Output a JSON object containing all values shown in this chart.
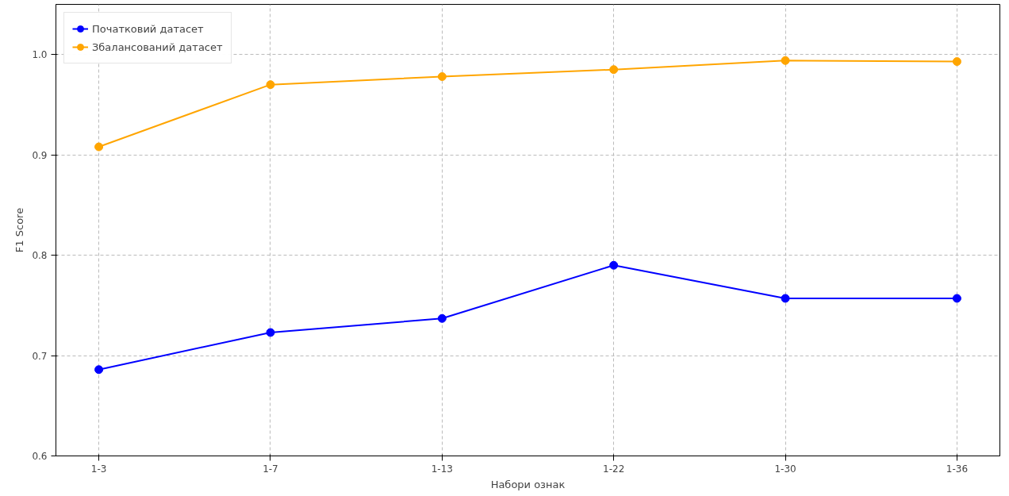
{
  "chart_data": {
    "type": "line",
    "xlabel": "Набори ознак",
    "ylabel": "F1 Score",
    "categories": [
      "1-3",
      "1-7",
      "1-13",
      "1-22",
      "1-30",
      "1-36"
    ],
    "series": [
      {
        "name": "Початковий датасет",
        "color": "#0000ff",
        "values": [
          0.686,
          0.723,
          0.737,
          0.79,
          0.757,
          0.757
        ]
      },
      {
        "name": "Збалансований датасет",
        "color": "#ffa500",
        "values": [
          0.908,
          0.97,
          0.978,
          0.985,
          0.994,
          0.993
        ]
      }
    ],
    "ylim": [
      0.6,
      1.05
    ],
    "yticks": [
      {
        "value": 0.6,
        "label": "0.6"
      },
      {
        "value": 0.7,
        "label": "0.7"
      },
      {
        "value": 0.8,
        "label": "0.8"
      },
      {
        "value": 0.9,
        "label": "0.9"
      },
      {
        "value": 1.0,
        "label": "1.0"
      }
    ],
    "grid": true,
    "legend": "top left",
    "marker": "circle",
    "line_style": "solid"
  }
}
